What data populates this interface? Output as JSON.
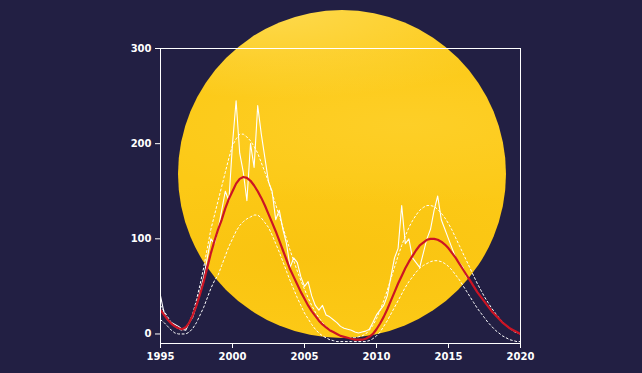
{
  "chart_data": {
    "type": "line",
    "x": [
      1995,
      1995.25,
      1995.5,
      1995.75,
      1996,
      1996.25,
      1996.5,
      1996.75,
      1997,
      1997.25,
      1997.5,
      1997.75,
      1998,
      1998.25,
      1998.5,
      1998.75,
      1999,
      1999.25,
      1999.5,
      1999.75,
      2000,
      2000.25,
      2000.5,
      2000.75,
      2001,
      2001.25,
      2001.5,
      2001.75,
      2002,
      2002.25,
      2002.5,
      2002.75,
      2003,
      2003.25,
      2003.5,
      2003.75,
      2004,
      2004.25,
      2004.5,
      2004.75,
      2005,
      2005.25,
      2005.5,
      2005.75,
      2006,
      2006.25,
      2006.5,
      2006.75,
      2007,
      2007.25,
      2007.5,
      2007.75,
      2008,
      2008.25,
      2008.5,
      2008.75,
      2009,
      2009.25,
      2009.5,
      2009.75,
      2010,
      2010.25,
      2010.5,
      2010.75,
      2011,
      2011.25,
      2011.5,
      2011.75,
      2012,
      2012.25,
      2012.5,
      2012.75,
      2013,
      2013.25,
      2013.5,
      2013.75,
      2014,
      2014.25,
      2014.5,
      2014.75,
      2015,
      2015.25,
      2015.5,
      2015.75,
      2016,
      2016.25,
      2016.5,
      2016.75,
      2017,
      2017.25,
      2017.5,
      2017.75,
      2018,
      2018.25,
      2018.5,
      2018.75,
      2019,
      2019.25,
      2019.5,
      2019.75,
      2020
    ],
    "series": [
      {
        "color": "#ffffff",
        "line_style": "dotted",
        "values": [
          30,
          24,
          18,
          12,
          8,
          5,
          4,
          6,
          12,
          22,
          36,
          52,
          70,
          90,
          110,
          125,
          140,
          155,
          170,
          185,
          198,
          205,
          210,
          210,
          207,
          203,
          197,
          190,
          180,
          170,
          160,
          148,
          136,
          124,
          112,
          100,
          88,
          77,
          66,
          56,
          47,
          38,
          30,
          23,
          17,
          12,
          8,
          5,
          2,
          0,
          -2,
          -3,
          -4,
          -4,
          -4,
          -3,
          -2,
          0,
          4,
          9,
          16,
          25,
          35,
          46,
          58,
          70,
          82,
          93,
          103,
          112,
          119,
          125,
          130,
          133,
          135,
          135,
          134,
          131,
          127,
          122,
          116,
          109,
          101,
          93,
          85,
          77,
          69,
          61,
          53,
          46,
          39,
          33,
          27,
          22,
          17,
          13,
          9,
          6,
          3,
          1,
          0
        ]
      },
      {
        "color": "#ffffff",
        "line_style": "dotted",
        "values": [
          15,
          12,
          8,
          4,
          1,
          0,
          0,
          0,
          2,
          6,
          12,
          20,
          28,
          38,
          48,
          56,
          62,
          72,
          82,
          92,
          100,
          108,
          114,
          118,
          121,
          123,
          125,
          125,
          122,
          117,
          112,
          104,
          95,
          86,
          76,
          66,
          56,
          47,
          38,
          30,
          22,
          16,
          10,
          5,
          1,
          -2,
          -4,
          -6,
          -7,
          -8,
          -8,
          -8,
          -8,
          -8,
          -8,
          -8,
          -8,
          -8,
          -7,
          -5,
          -2,
          2,
          8,
          14,
          21,
          28,
          35,
          42,
          49,
          55,
          60,
          65,
          69,
          72,
          74,
          76,
          77,
          77,
          76,
          74,
          71,
          67,
          62,
          57,
          51,
          45,
          39,
          33,
          27,
          22,
          17,
          12,
          8,
          4,
          1,
          -2,
          -4,
          -6,
          -7,
          -8,
          -8
        ]
      },
      {
        "color": "#ffffff",
        "line_style": "solid",
        "values": [
          40,
          22,
          15,
          12,
          10,
          8,
          5,
          4,
          12,
          18,
          30,
          45,
          60,
          80,
          100,
          95,
          110,
          130,
          150,
          140,
          200,
          245,
          190,
          170,
          140,
          200,
          175,
          240,
          210,
          185,
          160,
          150,
          120,
          130,
          110,
          95,
          70,
          80,
          75,
          60,
          50,
          55,
          40,
          30,
          25,
          30,
          20,
          18,
          15,
          12,
          8,
          6,
          5,
          4,
          2,
          1,
          2,
          3,
          5,
          12,
          20,
          25,
          30,
          40,
          60,
          80,
          90,
          135,
          95,
          100,
          80,
          75,
          70,
          85,
          100,
          110,
          130,
          145,
          120,
          110,
          100,
          90,
          80,
          75,
          70,
          60,
          null,
          null,
          null,
          null,
          null,
          null,
          null,
          null,
          null,
          null,
          null,
          null,
          null,
          null,
          null
        ]
      },
      {
        "color": "#cc1424",
        "line_style": "solid",
        "values": [
          25,
          20,
          15,
          11,
          8,
          6,
          5,
          7,
          12,
          20,
          30,
          42,
          55,
          70,
          85,
          98,
          110,
          120,
          132,
          142,
          150,
          158,
          163,
          165,
          164,
          161,
          156,
          150,
          143,
          135,
          126,
          117,
          108,
          98,
          88,
          78,
          68,
          60,
          52,
          44,
          37,
          30,
          24,
          19,
          14,
          10,
          7,
          4,
          2,
          0,
          -2,
          -3,
          -4,
          -5,
          -6,
          -6,
          -6,
          -5,
          -3,
          0,
          5,
          11,
          18,
          26,
          35,
          44,
          53,
          61,
          69,
          76,
          82,
          88,
          93,
          96,
          99,
          100,
          100,
          99,
          97,
          94,
          90,
          85,
          80,
          74,
          68,
          62,
          56,
          50,
          44,
          39,
          34,
          29,
          24,
          20,
          16,
          12,
          9,
          6,
          4,
          2,
          0
        ]
      }
    ],
    "xlim": [
      1995,
      2020
    ],
    "xticks": [
      1995,
      2000,
      2005,
      2010,
      2015,
      2020
    ],
    "ylim": [
      -10,
      300
    ],
    "yticks": [
      0,
      100,
      200,
      300
    ],
    "grid": false
  }
}
